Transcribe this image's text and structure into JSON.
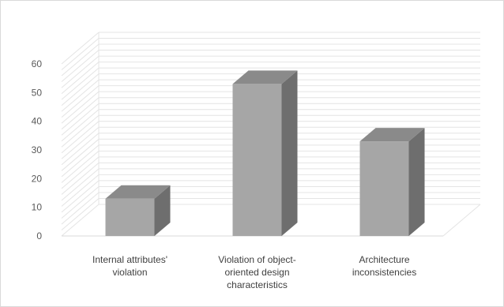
{
  "chart_data": {
    "type": "bar",
    "style": "3d-column",
    "title": "",
    "xlabel": "",
    "ylabel": "",
    "categories": [
      [
        "Internal attributes'",
        "violation"
      ],
      [
        "Violation of object-",
        "oriented design",
        "characteristics"
      ],
      [
        "Architecture",
        "inconsistencies"
      ]
    ],
    "values": [
      13,
      53,
      33
    ],
    "ylim": [
      0,
      60
    ],
    "yticks": [
      0,
      10,
      20,
      30,
      40,
      50,
      60
    ],
    "grid": true,
    "legend": "none",
    "colors": {
      "front": "#a6a6a6",
      "side": "#6e6e6e",
      "top": "#8a8a8a",
      "grid": "#e4e4e4",
      "wall": "#ececec"
    }
  }
}
